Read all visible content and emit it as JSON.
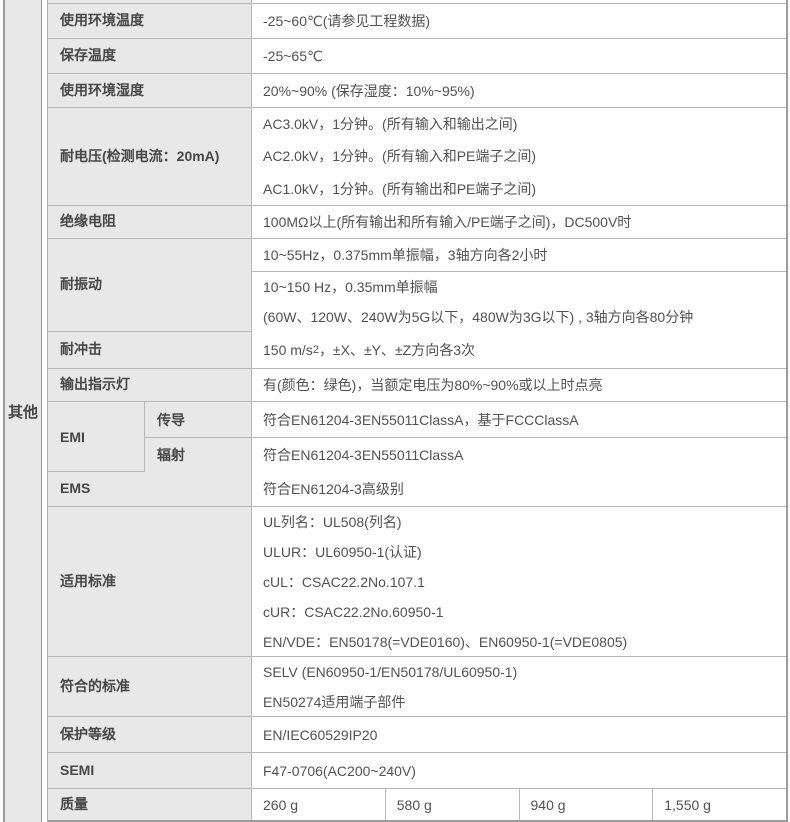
{
  "colors": {
    "label_bg": "#e8e8e8",
    "value_bg": "#ffffff",
    "row_border": "#b7b7b7",
    "outer_border": "#9b9b9b",
    "label_text": "#474747",
    "value_text": "#525252"
  },
  "table": {
    "group_label": "其他",
    "rows": {
      "ambient_temp": {
        "label": "使用环境温度",
        "value": "-25~60℃(请参见工程数据)"
      },
      "storage_temp": {
        "label": "保存温度",
        "value": "-25~65℃"
      },
      "ambient_humidity": {
        "label": "使用环境湿度",
        "value": "20%~90% (保存湿度：10%~95%)"
      },
      "withstand_voltage": {
        "label": "耐电压(检测电流：20mA)",
        "lines": [
          "AC3.0kV，1分钟。(所有输入和输出之间)",
          "AC2.0kV，1分钟。(所有输入和PE端子之间)",
          "AC1.0kV，1分钟。(所有输出和PE端子之间)"
        ]
      },
      "insulation_resistance": {
        "label": "绝缘电阻",
        "value": "100MΩ以上(所有输出和所有输入/PE端子之间)，DC500V时"
      },
      "vibration": {
        "label": "耐振动",
        "sub1": "10~55Hz，0.375mm单振幅，3轴方向各2小时",
        "sub2_lines": [
          "10~150 Hz，0.35mm单振幅",
          "(60W、120W、240W为5G以下，480W为3G以下) , 3轴方向各80分钟"
        ]
      },
      "shock": {
        "label": "耐冲击",
        "value_pre": "150 m/s",
        "value_sup": "2",
        "value_post": "，±X、±Y、±Z方向各3次"
      },
      "output_indicator": {
        "label": "输出指示灯",
        "value": "有(颜色：绿色)，当额定电压为80%~90%或以上时点亮"
      },
      "emi": {
        "label": "EMI",
        "conducted_label": "传导",
        "conducted_value": "符合EN61204-3EN55011ClassA，基于FCCClassA",
        "radiated_label": "辐射",
        "radiated_value": "符合EN61204-3EN55011ClassA"
      },
      "ems": {
        "label": "EMS",
        "value": "符合EN61204-3高级别"
      },
      "applicable_standards": {
        "label": "适用标准",
        "lines": [
          "UL列名：UL508(列名)",
          "ULUR：UL60950-1(认证)",
          "cUL：CSAC22.2No.107.1",
          "cUR：CSAC22.2No.60950-1",
          "EN/VDE：EN50178(=VDE0160)、EN60950-1(=VDE0805)"
        ]
      },
      "conforming_standards": {
        "label": "符合的标准",
        "lines": [
          "SELV (EN60950-1/EN50178/UL60950-1)",
          "EN50274适用端子部件"
        ]
      },
      "protection_class": {
        "label": "保护等级",
        "value": "EN/IEC60529IP20"
      },
      "semi": {
        "label": "SEMI",
        "value": "F47-0706(AC200~240V)"
      },
      "mass": {
        "label": "质量",
        "values": [
          "260 g",
          "580 g",
          "940 g",
          "1,550 g"
        ]
      }
    }
  }
}
